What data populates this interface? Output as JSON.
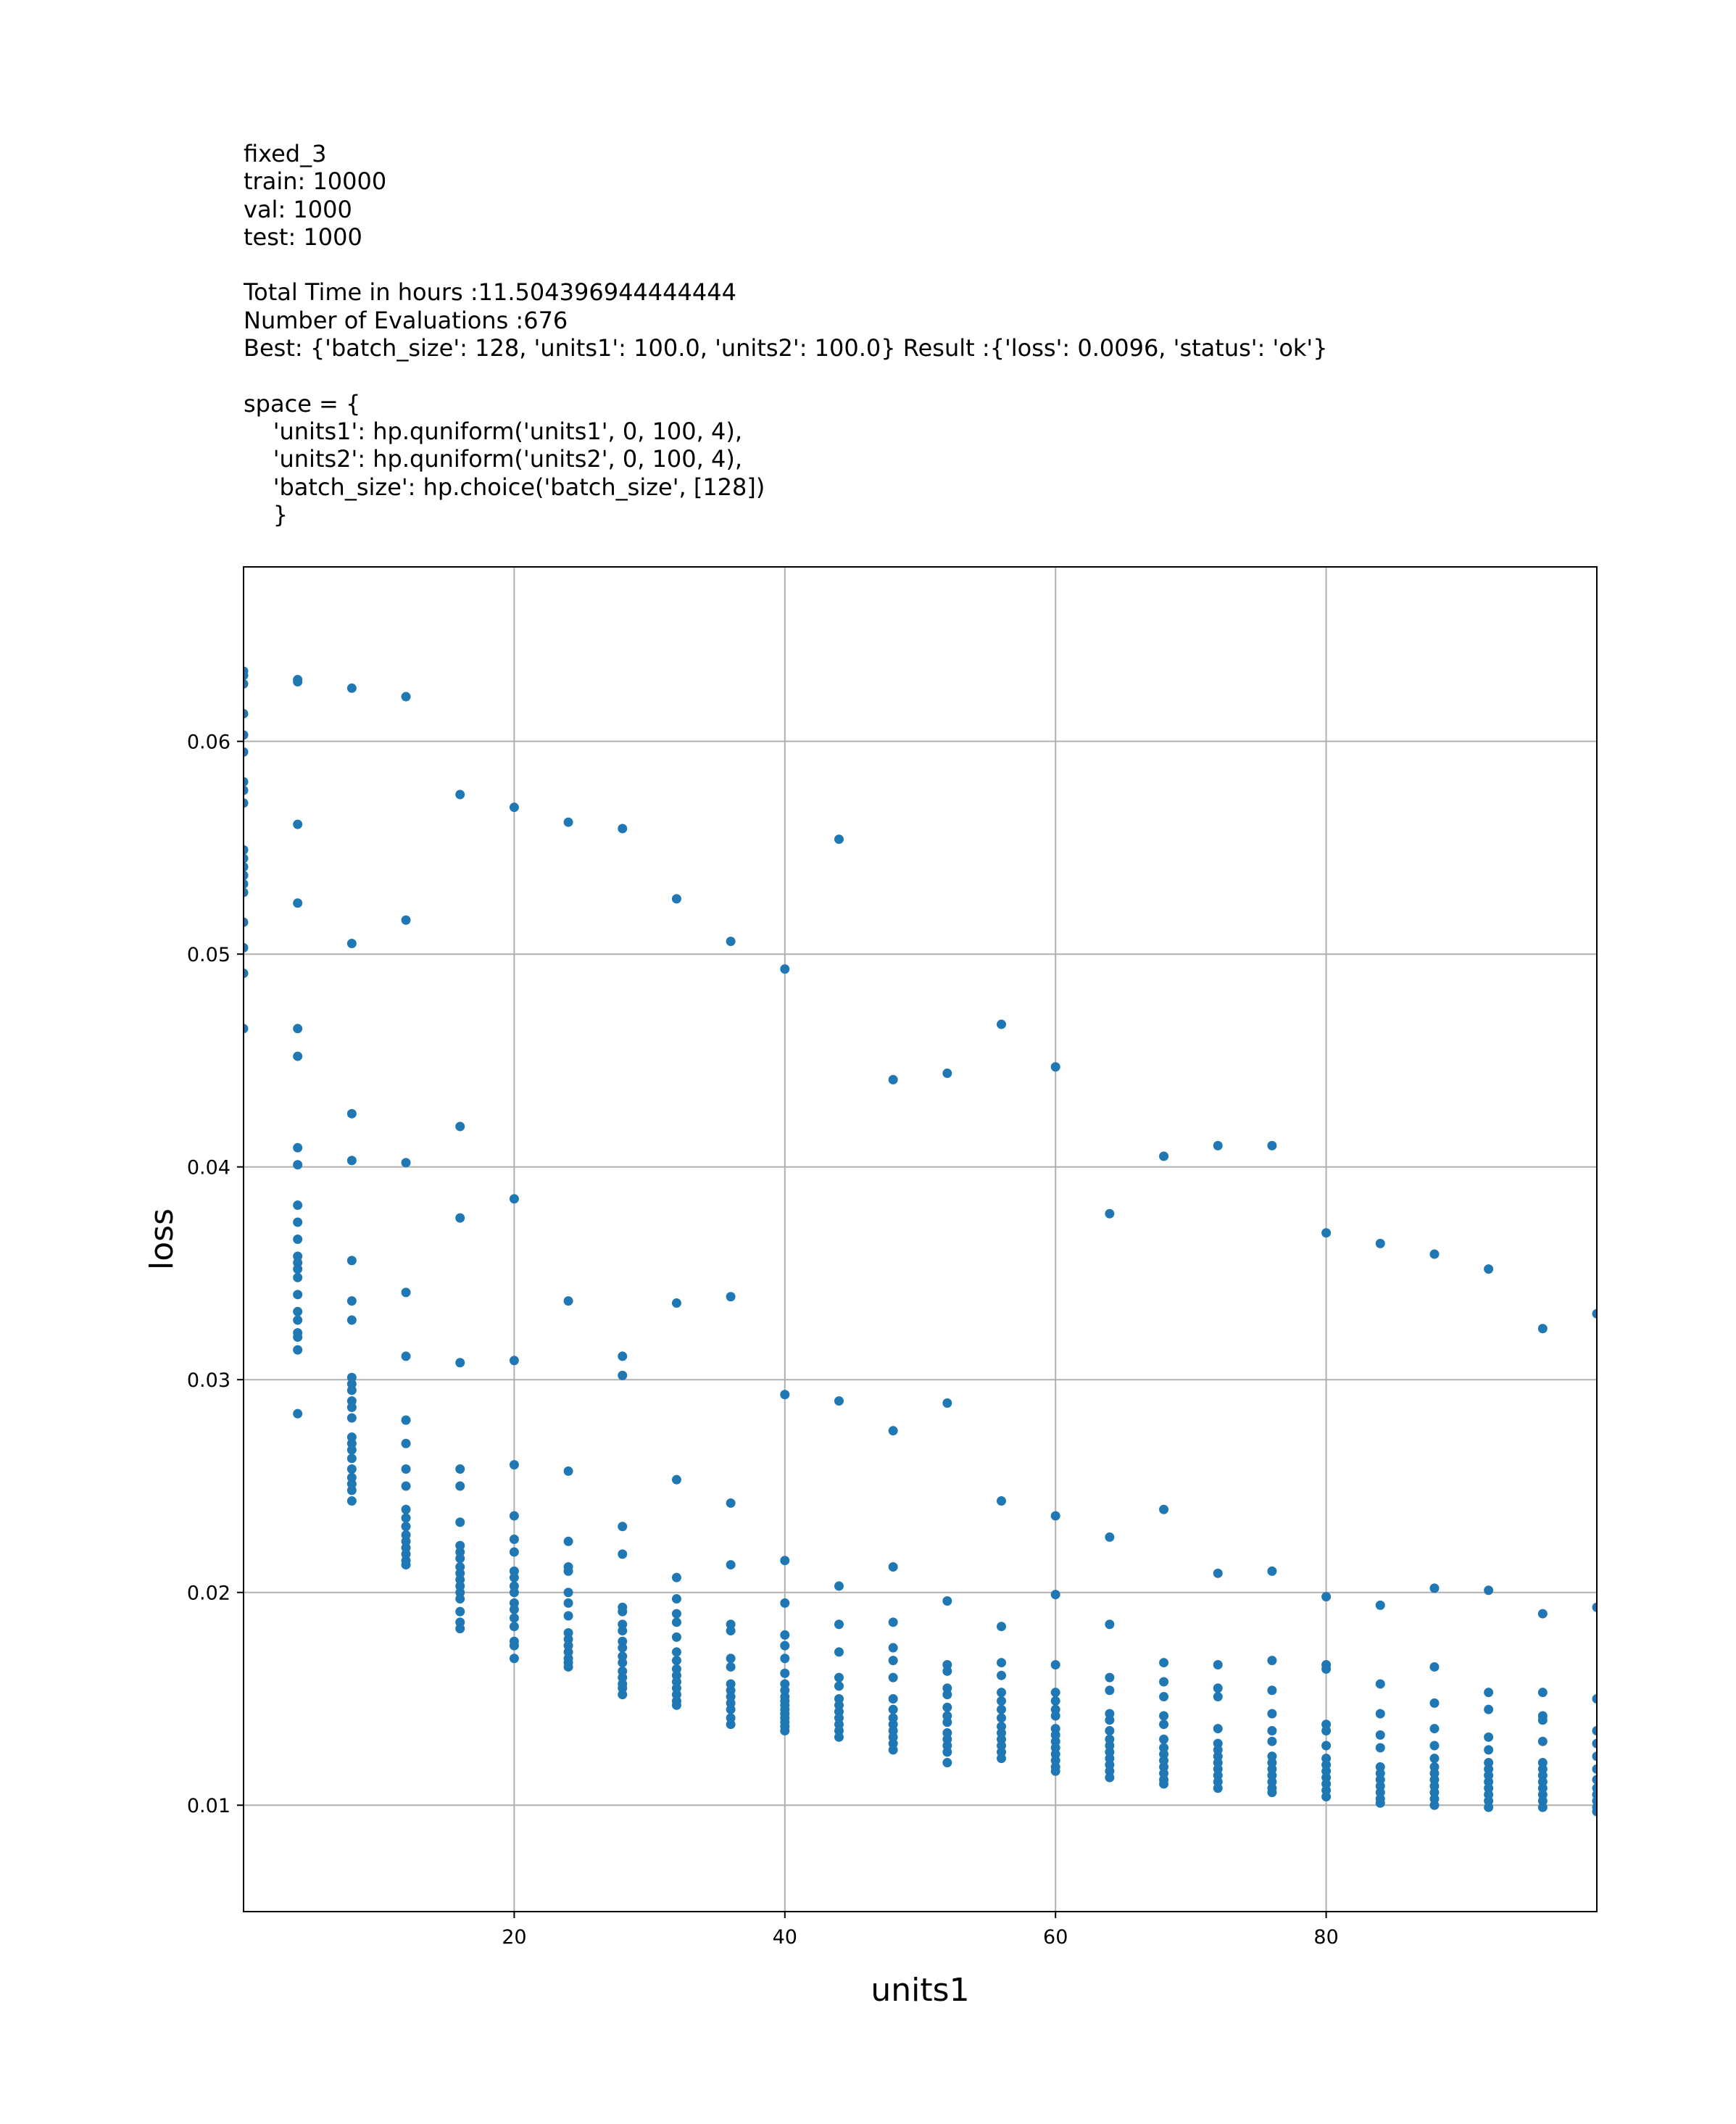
{
  "header_lines": [
    "fixed_3",
    "train: 10000",
    "val: 1000",
    "test: 1000",
    "",
    "Total Time in hours :11.504396944444444",
    "Number of Evaluations :676",
    "Best: {'batch_size': 128, 'units1': 100.0, 'units2': 100.0} Result :{'loss': 0.0096, 'status': 'ok'}",
    "",
    "space = {",
    "    'units1': hp.quniform('units1', 0, 100, 4),",
    "    'units2': hp.quniform('units2', 0, 100, 4),",
    "    'batch_size': hp.choice('batch_size', [128])",
    "    }"
  ],
  "colors": {
    "points": "#1f77b4",
    "grid": "#b0b0b0",
    "axes": "#000000"
  },
  "chart_data": {
    "type": "scatter",
    "xlabel": "units1",
    "ylabel": "loss",
    "xlim": [
      0,
      100
    ],
    "ylim": [
      0.005,
      0.0682
    ],
    "xticks": [
      20,
      40,
      60,
      80
    ],
    "xtick_labels": [
      "20",
      "40",
      "60",
      "80"
    ],
    "yticks": [
      0.01,
      0.02,
      0.03,
      0.04,
      0.05,
      0.06
    ],
    "ytick_labels": [
      "0.01",
      "0.02",
      "0.03",
      "0.04",
      "0.05",
      "0.06"
    ],
    "grid": true,
    "points": [
      [
        0,
        0.0633
      ],
      [
        0,
        0.0631
      ],
      [
        0,
        0.0627
      ],
      [
        0,
        0.0613
      ],
      [
        0,
        0.0603
      ],
      [
        0,
        0.0595
      ],
      [
        0,
        0.0581
      ],
      [
        0,
        0.0577
      ],
      [
        0,
        0.0571
      ],
      [
        0,
        0.0549
      ],
      [
        0,
        0.0545
      ],
      [
        0,
        0.0541
      ],
      [
        0,
        0.0537
      ],
      [
        0,
        0.0533
      ],
      [
        0,
        0.0529
      ],
      [
        0,
        0.0515
      ],
      [
        0,
        0.0503
      ],
      [
        0,
        0.0491
      ],
      [
        0,
        0.0465
      ],
      [
        4,
        0.0629
      ],
      [
        4,
        0.0628
      ],
      [
        4,
        0.0561
      ],
      [
        4,
        0.0524
      ],
      [
        4,
        0.0465
      ],
      [
        4,
        0.0452
      ],
      [
        4,
        0.0409
      ],
      [
        4,
        0.0401
      ],
      [
        4,
        0.0382
      ],
      [
        4,
        0.0374
      ],
      [
        4,
        0.0366
      ],
      [
        4,
        0.0358
      ],
      [
        4,
        0.0355
      ],
      [
        4,
        0.0352
      ],
      [
        4,
        0.0348
      ],
      [
        4,
        0.034
      ],
      [
        4,
        0.0332
      ],
      [
        4,
        0.0328
      ],
      [
        4,
        0.0322
      ],
      [
        4,
        0.032
      ],
      [
        4,
        0.0314
      ],
      [
        4,
        0.0284
      ],
      [
        8,
        0.0625
      ],
      [
        8,
        0.0505
      ],
      [
        8,
        0.0425
      ],
      [
        8,
        0.0403
      ],
      [
        8,
        0.0356
      ],
      [
        8,
        0.0337
      ],
      [
        8,
        0.0328
      ],
      [
        8,
        0.0301
      ],
      [
        8,
        0.0298
      ],
      [
        8,
        0.0295
      ],
      [
        8,
        0.029
      ],
      [
        8,
        0.0287
      ],
      [
        8,
        0.0282
      ],
      [
        8,
        0.0273
      ],
      [
        8,
        0.027
      ],
      [
        8,
        0.0267
      ],
      [
        8,
        0.0263
      ],
      [
        8,
        0.0258
      ],
      [
        8,
        0.0254
      ],
      [
        8,
        0.0251
      ],
      [
        8,
        0.0248
      ],
      [
        8,
        0.0243
      ],
      [
        12,
        0.0621
      ],
      [
        12,
        0.0516
      ],
      [
        12,
        0.0402
      ],
      [
        12,
        0.0341
      ],
      [
        12,
        0.0311
      ],
      [
        12,
        0.0281
      ],
      [
        12,
        0.027
      ],
      [
        12,
        0.0258
      ],
      [
        12,
        0.025
      ],
      [
        12,
        0.0239
      ],
      [
        12,
        0.0235
      ],
      [
        12,
        0.0231
      ],
      [
        12,
        0.0227
      ],
      [
        12,
        0.0224
      ],
      [
        12,
        0.0221
      ],
      [
        12,
        0.0218
      ],
      [
        12,
        0.0215
      ],
      [
        12,
        0.0213
      ],
      [
        16,
        0.0575
      ],
      [
        16,
        0.0419
      ],
      [
        16,
        0.0376
      ],
      [
        16,
        0.0308
      ],
      [
        16,
        0.0258
      ],
      [
        16,
        0.025
      ],
      [
        16,
        0.0233
      ],
      [
        16,
        0.0222
      ],
      [
        16,
        0.0219
      ],
      [
        16,
        0.0216
      ],
      [
        16,
        0.0212
      ],
      [
        16,
        0.0209
      ],
      [
        16,
        0.0206
      ],
      [
        16,
        0.0203
      ],
      [
        16,
        0.02
      ],
      [
        16,
        0.0197
      ],
      [
        16,
        0.0191
      ],
      [
        16,
        0.0186
      ],
      [
        16,
        0.0183
      ],
      [
        20,
        0.0569
      ],
      [
        20,
        0.0385
      ],
      [
        20,
        0.0309
      ],
      [
        20,
        0.026
      ],
      [
        20,
        0.0236
      ],
      [
        20,
        0.0225
      ],
      [
        20,
        0.0219
      ],
      [
        20,
        0.021
      ],
      [
        20,
        0.0207
      ],
      [
        20,
        0.0203
      ],
      [
        20,
        0.02
      ],
      [
        20,
        0.0195
      ],
      [
        20,
        0.0192
      ],
      [
        20,
        0.0188
      ],
      [
        20,
        0.0184
      ],
      [
        20,
        0.0177
      ],
      [
        20,
        0.0175
      ],
      [
        20,
        0.0169
      ],
      [
        24,
        0.0562
      ],
      [
        24,
        0.0337
      ],
      [
        24,
        0.0257
      ],
      [
        24,
        0.0224
      ],
      [
        24,
        0.0212
      ],
      [
        24,
        0.021
      ],
      [
        24,
        0.02
      ],
      [
        24,
        0.0195
      ],
      [
        24,
        0.0189
      ],
      [
        24,
        0.0181
      ],
      [
        24,
        0.0178
      ],
      [
        24,
        0.0175
      ],
      [
        24,
        0.0172
      ],
      [
        24,
        0.0169
      ],
      [
        24,
        0.0167
      ],
      [
        24,
        0.0165
      ],
      [
        28,
        0.0559
      ],
      [
        28,
        0.0311
      ],
      [
        28,
        0.0302
      ],
      [
        28,
        0.0231
      ],
      [
        28,
        0.0218
      ],
      [
        28,
        0.0193
      ],
      [
        28,
        0.0191
      ],
      [
        28,
        0.0185
      ],
      [
        28,
        0.0182
      ],
      [
        28,
        0.0177
      ],
      [
        28,
        0.0174
      ],
      [
        28,
        0.017
      ],
      [
        28,
        0.0167
      ],
      [
        28,
        0.0163
      ],
      [
        28,
        0.016
      ],
      [
        28,
        0.0157
      ],
      [
        28,
        0.0155
      ],
      [
        28,
        0.0152
      ],
      [
        32,
        0.0526
      ],
      [
        32,
        0.0336
      ],
      [
        32,
        0.0253
      ],
      [
        32,
        0.0207
      ],
      [
        32,
        0.0197
      ],
      [
        32,
        0.019
      ],
      [
        32,
        0.0186
      ],
      [
        32,
        0.0179
      ],
      [
        32,
        0.0172
      ],
      [
        32,
        0.0168
      ],
      [
        32,
        0.0164
      ],
      [
        32,
        0.0161
      ],
      [
        32,
        0.0158
      ],
      [
        32,
        0.0155
      ],
      [
        32,
        0.0152
      ],
      [
        32,
        0.0149
      ],
      [
        32,
        0.0147
      ],
      [
        36,
        0.0506
      ],
      [
        36,
        0.0339
      ],
      [
        36,
        0.0242
      ],
      [
        36,
        0.0213
      ],
      [
        36,
        0.0185
      ],
      [
        36,
        0.0182
      ],
      [
        36,
        0.0169
      ],
      [
        36,
        0.0165
      ],
      [
        36,
        0.0157
      ],
      [
        36,
        0.0154
      ],
      [
        36,
        0.0151
      ],
      [
        36,
        0.0148
      ],
      [
        36,
        0.0145
      ],
      [
        36,
        0.0141
      ],
      [
        36,
        0.0138
      ],
      [
        40,
        0.0493
      ],
      [
        40,
        0.0293
      ],
      [
        40,
        0.0215
      ],
      [
        40,
        0.0195
      ],
      [
        40,
        0.018
      ],
      [
        40,
        0.0175
      ],
      [
        40,
        0.0169
      ],
      [
        40,
        0.0162
      ],
      [
        40,
        0.0157
      ],
      [
        40,
        0.0154
      ],
      [
        40,
        0.0151
      ],
      [
        40,
        0.0149
      ],
      [
        40,
        0.0147
      ],
      [
        40,
        0.0145
      ],
      [
        40,
        0.0143
      ],
      [
        40,
        0.0141
      ],
      [
        40,
        0.0139
      ],
      [
        40,
        0.0137
      ],
      [
        40,
        0.0135
      ],
      [
        44,
        0.0554
      ],
      [
        44,
        0.029
      ],
      [
        44,
        0.0203
      ],
      [
        44,
        0.0185
      ],
      [
        44,
        0.0172
      ],
      [
        44,
        0.016
      ],
      [
        44,
        0.0156
      ],
      [
        44,
        0.015
      ],
      [
        44,
        0.0147
      ],
      [
        44,
        0.0144
      ],
      [
        44,
        0.0141
      ],
      [
        44,
        0.0138
      ],
      [
        44,
        0.0135
      ],
      [
        44,
        0.0132
      ],
      [
        48,
        0.0441
      ],
      [
        48,
        0.0276
      ],
      [
        48,
        0.0212
      ],
      [
        48,
        0.0186
      ],
      [
        48,
        0.0174
      ],
      [
        48,
        0.0168
      ],
      [
        48,
        0.016
      ],
      [
        48,
        0.015
      ],
      [
        48,
        0.0145
      ],
      [
        48,
        0.0141
      ],
      [
        48,
        0.0138
      ],
      [
        48,
        0.0135
      ],
      [
        48,
        0.0132
      ],
      [
        48,
        0.0129
      ],
      [
        48,
        0.0126
      ],
      [
        52,
        0.0444
      ],
      [
        52,
        0.0289
      ],
      [
        52,
        0.0196
      ],
      [
        52,
        0.0166
      ],
      [
        52,
        0.0163
      ],
      [
        52,
        0.0155
      ],
      [
        52,
        0.0152
      ],
      [
        52,
        0.0146
      ],
      [
        52,
        0.0142
      ],
      [
        52,
        0.0139
      ],
      [
        52,
        0.0134
      ],
      [
        52,
        0.0131
      ],
      [
        52,
        0.0128
      ],
      [
        52,
        0.0125
      ],
      [
        52,
        0.012
      ],
      [
        56,
        0.0467
      ],
      [
        56,
        0.0243
      ],
      [
        56,
        0.0184
      ],
      [
        56,
        0.0167
      ],
      [
        56,
        0.0161
      ],
      [
        56,
        0.0153
      ],
      [
        56,
        0.0149
      ],
      [
        56,
        0.0145
      ],
      [
        56,
        0.0141
      ],
      [
        56,
        0.0137
      ],
      [
        56,
        0.0134
      ],
      [
        56,
        0.0131
      ],
      [
        56,
        0.0128
      ],
      [
        56,
        0.0125
      ],
      [
        56,
        0.0122
      ],
      [
        60,
        0.0447
      ],
      [
        60,
        0.0236
      ],
      [
        60,
        0.0199
      ],
      [
        60,
        0.0166
      ],
      [
        60,
        0.0153
      ],
      [
        60,
        0.0149
      ],
      [
        60,
        0.0145
      ],
      [
        60,
        0.0142
      ],
      [
        60,
        0.0136
      ],
      [
        60,
        0.0133
      ],
      [
        60,
        0.013
      ],
      [
        60,
        0.0127
      ],
      [
        60,
        0.0124
      ],
      [
        60,
        0.0121
      ],
      [
        60,
        0.0118
      ],
      [
        60,
        0.0116
      ],
      [
        64,
        0.0378
      ],
      [
        64,
        0.0226
      ],
      [
        64,
        0.0185
      ],
      [
        64,
        0.016
      ],
      [
        64,
        0.0154
      ],
      [
        64,
        0.0143
      ],
      [
        64,
        0.014
      ],
      [
        64,
        0.0135
      ],
      [
        64,
        0.0131
      ],
      [
        64,
        0.0128
      ],
      [
        64,
        0.0125
      ],
      [
        64,
        0.0122
      ],
      [
        64,
        0.0119
      ],
      [
        64,
        0.0116
      ],
      [
        64,
        0.0113
      ],
      [
        68,
        0.0405
      ],
      [
        68,
        0.0239
      ],
      [
        68,
        0.0167
      ],
      [
        68,
        0.0158
      ],
      [
        68,
        0.0151
      ],
      [
        68,
        0.0142
      ],
      [
        68,
        0.0138
      ],
      [
        68,
        0.0131
      ],
      [
        68,
        0.0127
      ],
      [
        68,
        0.0124
      ],
      [
        68,
        0.0121
      ],
      [
        68,
        0.0118
      ],
      [
        68,
        0.0115
      ],
      [
        68,
        0.0112
      ],
      [
        68,
        0.011
      ],
      [
        72,
        0.041
      ],
      [
        72,
        0.0209
      ],
      [
        72,
        0.0166
      ],
      [
        72,
        0.0155
      ],
      [
        72,
        0.0151
      ],
      [
        72,
        0.0136
      ],
      [
        72,
        0.0129
      ],
      [
        72,
        0.0126
      ],
      [
        72,
        0.0123
      ],
      [
        72,
        0.012
      ],
      [
        72,
        0.0117
      ],
      [
        72,
        0.0114
      ],
      [
        72,
        0.0111
      ],
      [
        72,
        0.0108
      ],
      [
        76,
        0.041
      ],
      [
        76,
        0.021
      ],
      [
        76,
        0.0168
      ],
      [
        76,
        0.0154
      ],
      [
        76,
        0.0143
      ],
      [
        76,
        0.0135
      ],
      [
        76,
        0.013
      ],
      [
        76,
        0.0123
      ],
      [
        76,
        0.012
      ],
      [
        76,
        0.0117
      ],
      [
        76,
        0.0114
      ],
      [
        76,
        0.0111
      ],
      [
        76,
        0.0108
      ],
      [
        76,
        0.0106
      ],
      [
        80,
        0.0369
      ],
      [
        80,
        0.0198
      ],
      [
        80,
        0.0166
      ],
      [
        80,
        0.0164
      ],
      [
        80,
        0.0138
      ],
      [
        80,
        0.0135
      ],
      [
        80,
        0.0128
      ],
      [
        80,
        0.0122
      ],
      [
        80,
        0.0119
      ],
      [
        80,
        0.0116
      ],
      [
        80,
        0.0113
      ],
      [
        80,
        0.011
      ],
      [
        80,
        0.0107
      ],
      [
        80,
        0.0104
      ],
      [
        84,
        0.0364
      ],
      [
        84,
        0.0194
      ],
      [
        84,
        0.0157
      ],
      [
        84,
        0.0143
      ],
      [
        84,
        0.0133
      ],
      [
        84,
        0.0127
      ],
      [
        84,
        0.0118
      ],
      [
        84,
        0.0115
      ],
      [
        84,
        0.0112
      ],
      [
        84,
        0.0109
      ],
      [
        84,
        0.0106
      ],
      [
        84,
        0.0103
      ],
      [
        84,
        0.0101
      ],
      [
        88,
        0.0359
      ],
      [
        88,
        0.0202
      ],
      [
        88,
        0.0165
      ],
      [
        88,
        0.0148
      ],
      [
        88,
        0.0136
      ],
      [
        88,
        0.0128
      ],
      [
        88,
        0.0122
      ],
      [
        88,
        0.0118
      ],
      [
        88,
        0.0115
      ],
      [
        88,
        0.0112
      ],
      [
        88,
        0.0109
      ],
      [
        88,
        0.0106
      ],
      [
        88,
        0.0103
      ],
      [
        88,
        0.01
      ],
      [
        92,
        0.0352
      ],
      [
        92,
        0.0201
      ],
      [
        92,
        0.0153
      ],
      [
        92,
        0.0145
      ],
      [
        92,
        0.0132
      ],
      [
        92,
        0.0126
      ],
      [
        92,
        0.012
      ],
      [
        92,
        0.0117
      ],
      [
        92,
        0.0114
      ],
      [
        92,
        0.0111
      ],
      [
        92,
        0.0108
      ],
      [
        92,
        0.0105
      ],
      [
        92,
        0.0102
      ],
      [
        92,
        0.0099
      ],
      [
        96,
        0.0324
      ],
      [
        96,
        0.019
      ],
      [
        96,
        0.0153
      ],
      [
        96,
        0.0142
      ],
      [
        96,
        0.014
      ],
      [
        96,
        0.013
      ],
      [
        96,
        0.012
      ],
      [
        96,
        0.0117
      ],
      [
        96,
        0.0114
      ],
      [
        96,
        0.0111
      ],
      [
        96,
        0.0108
      ],
      [
        96,
        0.0105
      ],
      [
        96,
        0.0102
      ],
      [
        96,
        0.0099
      ],
      [
        100,
        0.0331
      ],
      [
        100,
        0.0193
      ],
      [
        100,
        0.015
      ],
      [
        100,
        0.0135
      ],
      [
        100,
        0.0129
      ],
      [
        100,
        0.0123
      ],
      [
        100,
        0.0117
      ],
      [
        100,
        0.0112
      ],
      [
        100,
        0.0108
      ],
      [
        100,
        0.0105
      ],
      [
        100,
        0.0102
      ],
      [
        100,
        0.0099
      ],
      [
        100,
        0.0097
      ]
    ]
  }
}
